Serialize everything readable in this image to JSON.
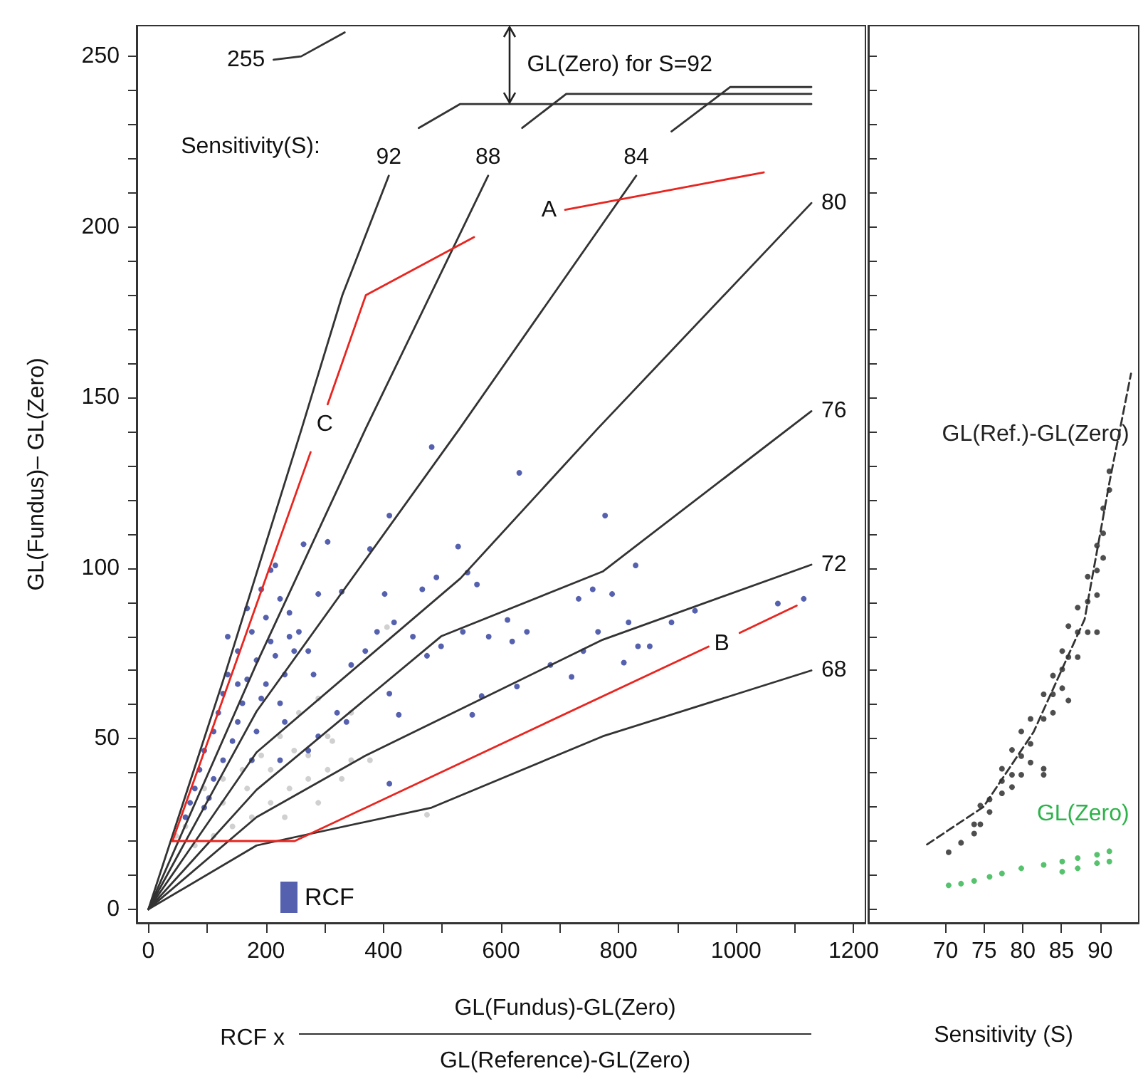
{
  "chart_data": [
    {
      "type": "scatter",
      "xlabel": "RCF x",
      "ylabel": "GL(Fundus)– GL(Zero)",
      "xlim": [
        -20,
        1220
      ],
      "ylim": [
        -4,
        259
      ],
      "legend": "bottom left",
      "marker": "circle",
      "xticks": [
        0,
        {
          "value": 100,
          "label": null
        },
        200,
        {
          "value": 300,
          "label": null
        },
        400,
        {
          "value": 500,
          "label": null
        },
        600,
        {
          "value": 700,
          "label": null
        },
        800,
        {
          "value": 900,
          "label": null
        },
        1000,
        {
          "value": 1100,
          "label": null
        },
        1200
      ],
      "yticks": [
        0,
        {
          "value": 10,
          "label": null
        },
        {
          "value": 20,
          "label": null
        },
        {
          "value": 30,
          "label": null
        },
        {
          "value": 40,
          "label": null
        },
        50,
        {
          "value": 60,
          "label": null
        },
        {
          "value": 70,
          "label": null
        },
        {
          "value": 80,
          "label": null
        },
        {
          "value": 90,
          "label": null
        },
        100,
        {
          "value": 110,
          "label": null
        },
        {
          "value": 120,
          "label": null
        },
        {
          "value": 130,
          "label": null
        },
        {
          "value": 140,
          "label": null
        },
        150,
        {
          "value": 160,
          "label": null
        },
        {
          "value": 170,
          "label": null
        },
        {
          "value": 180,
          "label": null
        },
        {
          "value": 190,
          "label": null
        },
        200,
        {
          "value": 210,
          "label": null
        },
        {
          "value": 220,
          "label": null
        },
        {
          "value": 230,
          "label": null
        },
        {
          "value": 240,
          "label": null
        },
        250
      ],
      "annotations": [
        {
          "text": "GL(Zero) for S=92",
          "x": 615,
          "y": 236
        },
        "Sensitivity(S):",
        "GL(Fundus)-GL(Zero)",
        "GL(Reference)-GL(Zero)",
        {
          "text": "92",
          "x": 409,
          "y": 215
        },
        {
          "text": "88",
          "x": 578,
          "y": 215
        },
        {
          "text": "84",
          "x": 830,
          "y": 215
        },
        {
          "text": "80",
          "x": 1128,
          "y": 207
        },
        {
          "text": "76",
          "x": 1128,
          "y": 146
        },
        {
          "text": "72",
          "x": 1128,
          "y": 101
        },
        {
          "text": "68",
          "x": 1128,
          "y": 70
        },
        {
          "text": "255",
          "x": 213,
          "y": 249
        },
        {
          "text": "A",
          "x": 709,
          "y": 205
        },
        {
          "text": "B",
          "x": 953,
          "y": 77
        },
        {
          "text": "C",
          "x": 305,
          "y": 148
        }
      ],
      "series": [
        {
          "color": "#c4c4c4",
          "x": [
            474,
            406,
            345,
            313,
            345,
            305,
            272,
            240,
            208,
            176,
            143,
            111,
            79,
            248,
            208,
            168,
            127,
            289,
            256,
            224,
            192,
            160,
            127,
            95,
            63,
            47,
            232,
            289,
            329,
            377,
            272,
            305
          ],
          "values": [
            27.7,
            82.7,
            57.6,
            49.3,
            43.7,
            40.9,
            38.2,
            35.4,
            31.2,
            27,
            24.3,
            21.5,
            18.7,
            46.5,
            40.9,
            35.4,
            31.2,
            61.8,
            57.6,
            50.7,
            45.1,
            40.9,
            38.2,
            35.4,
            24.3,
            21.5,
            27,
            31.2,
            38.2,
            43.7,
            45.1,
            50.7
          ]
        },
        {
          "name": "RCF",
          "color": "#2b3a9a",
          "x": [
            482,
            631,
            410,
            777,
            264,
            305,
            377,
            527,
            829,
            216,
            289,
            329,
            402,
            466,
            490,
            543,
            559,
            756,
            789,
            732,
            930,
            890,
            817,
            765,
            740,
            833,
            853,
            1115,
            1071,
            611,
            644,
            619,
            579,
            535,
            498,
            474,
            450,
            418,
            389,
            369,
            345,
            410,
            426,
            551,
            567,
            627,
            684,
            720,
            809,
            321,
            337,
            289,
            272,
            224,
            410,
            208,
            192,
            224,
            168,
            200,
            240,
            176,
            208,
            240,
            152,
            184,
            216,
            248,
            272,
            135,
            168,
            200,
            232,
            127,
            160,
            192,
            224,
            119,
            152,
            184,
            111,
            143,
            95,
            127,
            87,
            111,
            79,
            71,
            103,
            63,
            95,
            176,
            152,
            256,
            281,
            135,
            232
          ],
          "values": [
            135.5,
            127.9,
            115.4,
            115.4,
            107,
            107.7,
            105.6,
            106.3,
            100.8,
            100.8,
            92.4,
            93.1,
            92.4,
            93.8,
            97.3,
            98.7,
            95.2,
            93.8,
            92.4,
            91,
            87.5,
            84.1,
            84.1,
            81.3,
            75.7,
            77.1,
            77.1,
            91,
            89.6,
            84.8,
            81.3,
            78.5,
            79.9,
            81.3,
            77.1,
            74.3,
            79.9,
            84.1,
            81.3,
            75.7,
            71.6,
            63.2,
            57,
            57,
            62.5,
            65.3,
            71.6,
            68.1,
            72.3,
            57.6,
            54.9,
            50.7,
            46.5,
            43.7,
            36.8,
            99.4,
            93.8,
            91,
            88.2,
            85.5,
            86.9,
            81.3,
            78.5,
            79.9,
            75.7,
            73,
            74.3,
            75.7,
            75.7,
            68.8,
            67.4,
            66,
            68.8,
            63.2,
            60.4,
            61.8,
            60.4,
            57.6,
            54.9,
            52.1,
            52.1,
            49.3,
            46.5,
            43.7,
            40.9,
            38.2,
            35.4,
            31.2,
            32.6,
            27,
            29.8,
            43.7,
            66,
            81.3,
            68.8,
            79.9,
            54.9
          ]
        },
        {
          "type": "line",
          "marker": "none",
          "line_style": "solid",
          "color": "#333333",
          "x": [
            0,
            127,
            261,
            330,
            409,
            null,
            460,
            530,
            1128
          ],
          "values": [
            0,
            67,
            141,
            180,
            215,
            null,
            229,
            236,
            236
          ]
        },
        {
          "type": "line",
          "marker": "none",
          "line_style": "solid",
          "color": "#333333",
          "x": [
            0,
            184,
            370,
            578,
            null,
            636,
            711,
            1128
          ],
          "values": [
            0,
            72,
            141,
            215,
            null,
            229,
            239,
            239
          ]
        },
        {
          "type": "line",
          "marker": "none",
          "line_style": "solid",
          "color": "#333333",
          "x": [
            0,
            184,
            530,
            830,
            null,
            890,
            990,
            1128
          ],
          "values": [
            0,
            58,
            141,
            215,
            null,
            228,
            241,
            241
          ]
        },
        {
          "type": "line",
          "marker": "none",
          "line_style": "solid",
          "color": "#333333",
          "x": [
            0,
            184,
            531,
            765,
            1128
          ],
          "values": [
            0,
            46,
            97,
            141,
            207
          ]
        },
        {
          "type": "line",
          "marker": "none",
          "line_style": "solid",
          "color": "#333333",
          "x": [
            0,
            184,
            498,
            773,
            1128
          ],
          "values": [
            0,
            35,
            80,
            99,
            146
          ]
        },
        {
          "type": "line",
          "marker": "none",
          "line_style": "solid",
          "color": "#333333",
          "x": [
            0,
            184,
            369,
            773,
            1128
          ],
          "values": [
            0,
            27,
            45,
            79,
            101
          ]
        },
        {
          "type": "line",
          "marker": "none",
          "line_style": "solid",
          "color": "#333333",
          "x": [
            0,
            184,
            482,
            773,
            1128
          ],
          "values": [
            0,
            18.7,
            29.8,
            50.7,
            70
          ]
        },
        {
          "type": "line",
          "marker": "none",
          "line_style": "solid",
          "color": "#333333",
          "x": [
            213,
            260,
            334
          ],
          "values": [
            249,
            250,
            257
          ]
        },
        {
          "type": "line",
          "marker": "none",
          "line_style": "solid",
          "color": "#e8251f",
          "x": [
            41,
            276,
            null,
            305,
            370,
            554,
            null,
            709,
            1047
          ],
          "values": [
            20,
            134,
            null,
            148,
            180,
            197,
            null,
            205,
            216
          ]
        },
        {
          "type": "line",
          "marker": "none",
          "line_style": "solid",
          "color": "#e8251f",
          "x": [
            41,
            249,
            953,
            null,
            1006,
            1103
          ],
          "values": [
            20,
            20,
            77,
            null,
            81,
            89
          ]
        }
      ]
    },
    {
      "type": "scatter",
      "xlabel": "Sensitivity (S)",
      "xlim": [
        60,
        95
      ],
      "ylim": [
        -4,
        259
      ],
      "tick_labels": "x",
      "marker": "circle",
      "legend": false,
      "xticks": [
        70,
        75,
        80,
        85,
        90
      ],
      "yticks": [
        {
          "value": 0,
          "label": null
        },
        {
          "value": 10,
          "label": null
        },
        {
          "value": 20,
          "label": null
        },
        {
          "value": 30,
          "label": null
        },
        {
          "value": 40,
          "label": null
        },
        {
          "value": 50,
          "label": null
        },
        {
          "value": 60,
          "label": null
        },
        {
          "value": 70,
          "label": null
        },
        {
          "value": 80,
          "label": null
        },
        {
          "value": 90,
          "label": null
        },
        {
          "value": 100,
          "label": null
        },
        {
          "value": 110,
          "label": null
        },
        {
          "value": 120,
          "label": null
        },
        {
          "value": 130,
          "label": null
        },
        {
          "value": 140,
          "label": null
        },
        {
          "value": 150,
          "label": null
        },
        {
          "value": 160,
          "label": null
        },
        {
          "value": 170,
          "label": null
        },
        {
          "value": 180,
          "label": null
        },
        {
          "value": 190,
          "label": null
        },
        {
          "value": 200,
          "label": null
        },
        {
          "value": 210,
          "label": null
        },
        {
          "value": 220,
          "label": null
        },
        {
          "value": 230,
          "label": null
        },
        {
          "value": 240,
          "label": null
        },
        {
          "value": 250,
          "label": null
        }
      ],
      "series": [
        {
          "type": "line",
          "marker": "none",
          "line_style": "dashed",
          "color": "#333333",
          "x": [
            67.6,
            74.9,
            81.4,
            88,
            91.2,
            94
          ],
          "values": [
            19,
            30,
            52,
            85,
            125,
            157
          ]
        },
        {
          "name": "GL(Zero)",
          "color": "#2db34a",
          "x": [
            70.4,
            72,
            73.7,
            75.7,
            77.3,
            79.8,
            82.7,
            85.1,
            85.1,
            87.1,
            87.1,
            89.6,
            89.6,
            91.2,
            91.2
          ],
          "values": [
            7,
            7.5,
            8.3,
            9.5,
            10.5,
            12,
            13,
            11,
            14,
            12,
            15,
            13.5,
            16,
            14,
            17
          ]
        },
        {
          "name": "GL(Ref.)-GL(Zero)",
          "color": "#222222",
          "x": [
            70.4,
            72,
            73.7,
            73.7,
            74.5,
            74.5,
            75.7,
            75.7,
            77.3,
            77.3,
            77.3,
            78.6,
            78.6,
            78.6,
            79.8,
            79.8,
            79.8,
            81,
            81,
            81,
            82.7,
            82.7,
            82.7,
            82.7,
            83.9,
            83.9,
            83.9,
            85.1,
            85.1,
            85.1,
            85.9,
            85.9,
            85.9,
            87.1,
            87.1,
            87.1,
            88.4,
            88.4,
            88.4,
            89.6,
            89.6,
            89.6,
            89.6,
            90.4,
            90.4,
            90.4,
            91.2,
            91.2
          ],
          "values": [
            16.7,
            19.5,
            22.2,
            24.9,
            24.9,
            30.4,
            28.5,
            32.2,
            34,
            37.6,
            41.2,
            35.8,
            39.4,
            46.7,
            39.4,
            44.9,
            52.1,
            43,
            48.5,
            55.8,
            39.4,
            41.2,
            55.8,
            63,
            57.6,
            63,
            68.5,
            64.8,
            70.3,
            75.7,
            61.2,
            73.9,
            83,
            73.9,
            81.2,
            88.4,
            81.2,
            90.2,
            97.5,
            81.2,
            92.1,
            99.3,
            106.6,
            103,
            110.2,
            117.5,
            122.9,
            128.4
          ]
        }
      ]
    }
  ]
}
